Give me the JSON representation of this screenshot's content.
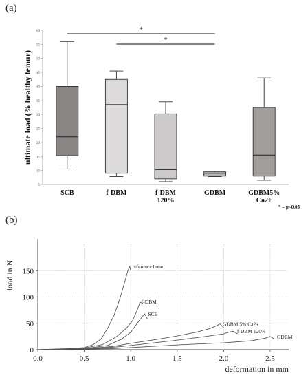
{
  "panel_a_label": "(a)",
  "panel_b_label": "(b)",
  "chart_data": [
    {
      "type": "box",
      "ylabel": "ultimate load (% healthy femur)",
      "ylim": [
        5,
        60
      ],
      "yticks": [
        5,
        10,
        15,
        20,
        25,
        30,
        35,
        40,
        45,
        50,
        55,
        60
      ],
      "categories": [
        "SCB",
        "f-DBM",
        "f-DBM\n120%",
        "GDBM",
        "GDBM5%\nCa2+"
      ],
      "boxes": [
        {
          "whisker_low": 10.5,
          "q1": 15.3,
          "median": 22,
          "q3": 40,
          "whisker_high": 56,
          "color": "#8a8585"
        },
        {
          "whisker_low": 7.8,
          "q1": 9,
          "median": 33.5,
          "q3": 42.5,
          "whisker_high": 45.5,
          "color": "#dcdada"
        },
        {
          "whisker_low": 6,
          "q1": 7,
          "median": 10.3,
          "q3": 30.2,
          "whisker_high": 34.5,
          "color": "#cbc9c9"
        },
        {
          "whisker_low": 7.8,
          "q1": 8,
          "median": 9,
          "q3": 9.5,
          "whisker_high": 9.8,
          "color": "#b5b2b2"
        },
        {
          "whisker_low": 6.5,
          "q1": 8,
          "median": 15.5,
          "q3": 32.5,
          "whisker_high": 43,
          "color": "#a29e9e"
        }
      ],
      "significance": [
        {
          "from": "SCB",
          "to": "GDBM",
          "label": "*"
        },
        {
          "from": "f-DBM",
          "to": "GDBM",
          "label": "*"
        }
      ],
      "note": "* = p<0.05"
    },
    {
      "type": "line",
      "xlabel": "deformation in mm",
      "ylabel": "load in N",
      "xlim": [
        0,
        2.7
      ],
      "ylim": [
        0,
        200
      ],
      "xticks": [
        "0.0",
        "0.5",
        "1.0",
        "1.5",
        "2.0",
        "2.5"
      ],
      "yticks": [
        "0",
        "50",
        "100",
        "150"
      ],
      "grid": true,
      "series": [
        {
          "name": "reference bone",
          "points": [
            [
              0,
              0
            ],
            [
              0.3,
              1.5
            ],
            [
              0.5,
              4
            ],
            [
              0.6,
              10
            ],
            [
              0.68,
              20
            ],
            [
              0.75,
              40
            ],
            [
              0.82,
              65
            ],
            [
              0.88,
              95
            ],
            [
              0.93,
              125
            ],
            [
              0.97,
              150
            ],
            [
              0.99,
              158
            ],
            [
              1.0,
              150
            ]
          ]
        },
        {
          "name": "f-DBM",
          "points": [
            [
              0,
              0
            ],
            [
              0.5,
              3
            ],
            [
              0.7,
              10
            ],
            [
              0.85,
              25
            ],
            [
              0.95,
              40
            ],
            [
              1.02,
              55
            ],
            [
              1.07,
              75
            ],
            [
              1.1,
              90
            ],
            [
              1.13,
              88
            ]
          ]
        },
        {
          "name": "SCB",
          "points": [
            [
              0,
              0
            ],
            [
              0.5,
              2
            ],
            [
              0.75,
              8
            ],
            [
              0.9,
              20
            ],
            [
              1.0,
              33
            ],
            [
              1.07,
              50
            ],
            [
              1.12,
              62
            ],
            [
              1.15,
              68
            ],
            [
              1.18,
              58
            ]
          ]
        },
        {
          "name": "GDBM 5% Ca2+",
          "points": [
            [
              0,
              0
            ],
            [
              0.5,
              2
            ],
            [
              0.8,
              6
            ],
            [
              1.0,
              12
            ],
            [
              1.3,
              20
            ],
            [
              1.5,
              26
            ],
            [
              1.7,
              33
            ],
            [
              1.85,
              40
            ],
            [
              1.93,
              46
            ],
            [
              1.96,
              49
            ],
            [
              2.0,
              42
            ]
          ]
        },
        {
          "name": "f-DBM 120%",
          "points": [
            [
              0,
              0
            ],
            [
              0.6,
              2
            ],
            [
              0.9,
              6
            ],
            [
              1.2,
              12
            ],
            [
              1.5,
              18
            ],
            [
              1.8,
              25
            ],
            [
              2.0,
              30
            ],
            [
              2.05,
              33
            ],
            [
              2.1,
              35
            ],
            [
              2.15,
              30
            ]
          ]
        },
        {
          "name": "GDBM",
          "points": [
            [
              0,
              0
            ],
            [
              0.8,
              2
            ],
            [
              1.2,
              6
            ],
            [
              1.6,
              10
            ],
            [
              2.0,
              13
            ],
            [
              2.3,
              17
            ],
            [
              2.45,
              22
            ],
            [
              2.5,
              25
            ],
            [
              2.55,
              20
            ]
          ]
        }
      ]
    }
  ]
}
